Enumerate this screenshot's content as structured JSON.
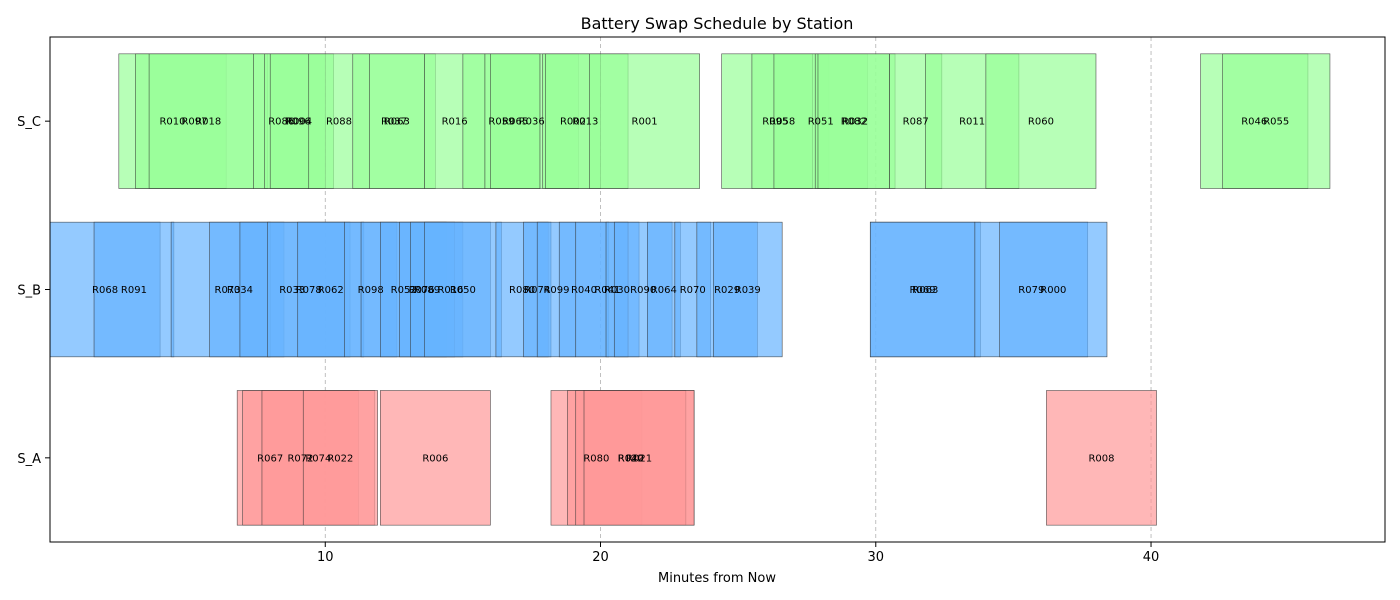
{
  "chart_data": {
    "type": "gantt",
    "title": "Battery Swap Schedule by Station",
    "xlabel": "Minutes from Now",
    "ylabel": "",
    "xlim": [
      0.0,
      48.5
    ],
    "xticks": [
      10,
      20,
      30,
      40
    ],
    "grid": "x dashed",
    "categories": [
      "S_A",
      "S_B",
      "S_C"
    ],
    "colors": {
      "S_A": "#ff9999",
      "S_B": "#66b3ff",
      "S_C": "#99ff99"
    },
    "bar_alpha": 0.7,
    "bar_edge_color": "#333333",
    "series": [
      {
        "station": "S_A",
        "bookings": [
          {
            "id": "R067",
            "start": 6.8,
            "end": 9.2
          },
          {
            "id": "R072",
            "start": 7.0,
            "end": 11.2
          },
          {
            "id": "R074",
            "start": 7.7,
            "end": 11.8
          },
          {
            "id": "R022",
            "start": 9.2,
            "end": 11.9
          },
          {
            "id": "R006",
            "start": 12.0,
            "end": 16.0
          },
          {
            "id": "R080",
            "start": 18.2,
            "end": 21.5
          },
          {
            "id": "R042",
            "start": 18.8,
            "end": 23.4
          },
          {
            "id": "R020",
            "start": 19.1,
            "end": 23.1
          },
          {
            "id": "R021",
            "start": 19.4,
            "end": 23.4
          },
          {
            "id": "R008",
            "start": 36.2,
            "end": 40.2
          }
        ]
      },
      {
        "station": "S_B",
        "bookings": [
          {
            "id": "R068",
            "start": 0.0,
            "end": 4.0
          },
          {
            "id": "R091",
            "start": 1.6,
            "end": 4.5
          },
          {
            "id": "R073",
            "start": 4.4,
            "end": 8.5
          },
          {
            "id": "R034",
            "start": 5.8,
            "end": 8.0
          },
          {
            "id": "R033",
            "start": 6.9,
            "end": 10.7
          },
          {
            "id": "R078",
            "start": 7.9,
            "end": 10.9
          },
          {
            "id": "R062",
            "start": 9.0,
            "end": 11.4
          },
          {
            "id": "R098",
            "start": 10.7,
            "end": 12.6
          },
          {
            "id": "R052",
            "start": 11.3,
            "end": 14.4
          },
          {
            "id": "R076",
            "start": 12.0,
            "end": 15.0
          },
          {
            "id": "R089",
            "start": 12.7,
            "end": 14.7
          },
          {
            "id": "R016",
            "start": 13.1,
            "end": 16.0
          },
          {
            "id": "R050",
            "start": 13.6,
            "end": 16.4
          },
          {
            "id": "R080",
            "start": 16.2,
            "end": 18.1
          },
          {
            "id": "R074",
            "start": 17.2,
            "end": 18.2
          },
          {
            "id": "R099",
            "start": 17.7,
            "end": 19.1
          },
          {
            "id": "R040",
            "start": 18.5,
            "end": 20.3
          },
          {
            "id": "R041",
            "start": 19.1,
            "end": 21.4
          },
          {
            "id": "R030",
            "start": 20.2,
            "end": 21.0
          },
          {
            "id": "R090",
            "start": 20.5,
            "end": 22.6
          },
          {
            "id": "R064",
            "start": 21.7,
            "end": 22.9
          },
          {
            "id": "R070",
            "start": 22.7,
            "end": 24.0
          },
          {
            "id": "R029",
            "start": 23.5,
            "end": 25.7
          },
          {
            "id": "R039",
            "start": 24.1,
            "end": 26.6
          },
          {
            "id": "R069",
            "start": 29.8,
            "end": 33.6
          },
          {
            "id": "R063",
            "start": 29.8,
            "end": 33.8
          },
          {
            "id": "R079",
            "start": 33.6,
            "end": 37.7
          },
          {
            "id": "R000",
            "start": 34.5,
            "end": 38.4
          }
        ]
      },
      {
        "station": "S_C",
        "bookings": [
          {
            "id": "R010",
            "start": 2.5,
            "end": 6.4
          },
          {
            "id": "R097",
            "start": 3.1,
            "end": 7.4
          },
          {
            "id": "R018",
            "start": 3.6,
            "end": 7.9
          },
          {
            "id": "R086",
            "start": 7.4,
            "end": 9.4
          },
          {
            "id": "R004",
            "start": 7.8,
            "end": 10.3
          },
          {
            "id": "R096",
            "start": 8.0,
            "end": 10.0
          },
          {
            "id": "R088",
            "start": 9.4,
            "end": 11.6
          },
          {
            "id": "R037",
            "start": 11.0,
            "end": 14.0
          },
          {
            "id": "R063",
            "start": 11.6,
            "end": 13.6
          },
          {
            "id": "R016",
            "start": 13.6,
            "end": 15.8
          },
          {
            "id": "R059",
            "start": 15.0,
            "end": 17.8
          },
          {
            "id": "R036",
            "start": 15.8,
            "end": 19.2
          },
          {
            "id": "R065",
            "start": 16.0,
            "end": 17.8
          },
          {
            "id": "R013",
            "start": 17.9,
            "end": 21.0
          },
          {
            "id": "R002",
            "start": 18.0,
            "end": 20.0
          },
          {
            "id": "R001",
            "start": 19.6,
            "end": 23.6
          },
          {
            "id": "R095",
            "start": 24.4,
            "end": 28.3
          },
          {
            "id": "R058",
            "start": 25.5,
            "end": 27.7
          },
          {
            "id": "R051",
            "start": 26.3,
            "end": 29.7
          },
          {
            "id": "R032",
            "start": 27.8,
            "end": 30.7
          },
          {
            "id": "R082",
            "start": 27.9,
            "end": 30.5
          },
          {
            "id": "R087",
            "start": 30.5,
            "end": 32.4
          },
          {
            "id": "R011",
            "start": 31.8,
            "end": 35.2
          },
          {
            "id": "R060",
            "start": 34.0,
            "end": 38.0
          },
          {
            "id": "R046",
            "start": 41.8,
            "end": 45.7
          },
          {
            "id": "R055",
            "start": 42.6,
            "end": 46.5
          }
        ]
      }
    ]
  }
}
